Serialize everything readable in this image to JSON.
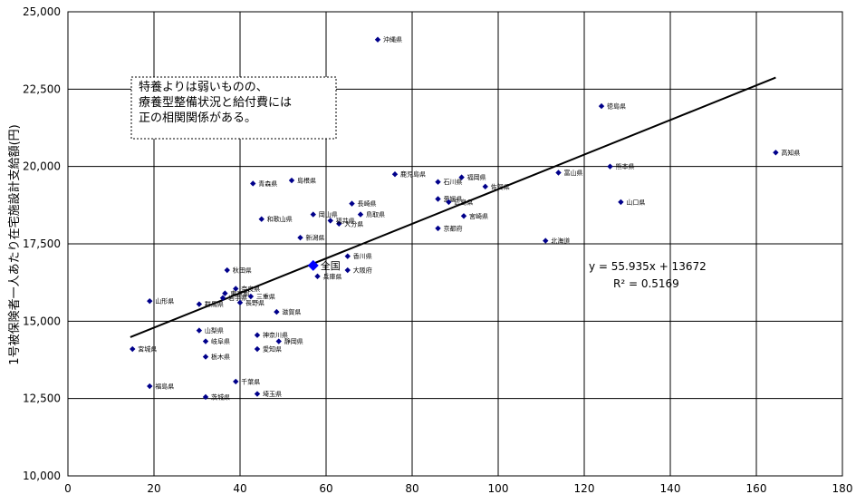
{
  "chart_data": {
    "type": "scatter",
    "ylabel": "1号被保険者一人あたり在宅施設計支給額(円)",
    "xlabel": "",
    "xlim": [
      0,
      180
    ],
    "ylim": [
      10000,
      25000
    ],
    "x_ticks": [
      "0",
      "20",
      "40",
      "60",
      "80",
      "100",
      "120",
      "140",
      "160",
      "180"
    ],
    "y_ticks": [
      "10,000",
      "12,500",
      "15,000",
      "17,500",
      "20,000",
      "22,500",
      "25,000"
    ],
    "grid": true,
    "marker_color": "#00008B",
    "national_color": "#0000FF",
    "trendline": {
      "slope": 55.935,
      "intercept": 13672,
      "x_range": [
        14.5,
        164.5
      ],
      "equation_text": "y = 55.935x + 13672",
      "r2_text": "R² = 0.5169"
    },
    "annotation_lines": [
      "特養よりは弱いものの、",
      "療養型整備状況と給付費には",
      "正の相関関係がある。"
    ],
    "national": {
      "name": "全国",
      "x": 57,
      "y": 16800
    },
    "points": [
      {
        "name": "沖縄県",
        "x": 72,
        "y": 24100
      },
      {
        "name": "徳島県",
        "x": 124,
        "y": 21950
      },
      {
        "name": "高知県",
        "x": 164.5,
        "y": 20450
      },
      {
        "name": "熊本県",
        "x": 126,
        "y": 20000
      },
      {
        "name": "富山県",
        "x": 114,
        "y": 19800
      },
      {
        "name": "鹿児島県",
        "x": 76,
        "y": 19750
      },
      {
        "name": "福岡県",
        "x": 91.5,
        "y": 19650
      },
      {
        "name": "島根県",
        "x": 52,
        "y": 19550
      },
      {
        "name": "石川県",
        "x": 86,
        "y": 19500
      },
      {
        "name": "青森県",
        "x": 43,
        "y": 19450
      },
      {
        "name": "佐賀県",
        "x": 97,
        "y": 19350
      },
      {
        "name": "愛媛県",
        "x": 86,
        "y": 18950
      },
      {
        "name": "広島県",
        "x": 88.5,
        "y": 18850
      },
      {
        "name": "山口県",
        "x": 128.5,
        "y": 18850
      },
      {
        "name": "長崎県",
        "x": 66,
        "y": 18800
      },
      {
        "name": "宮崎県",
        "x": 92,
        "y": 18400
      },
      {
        "name": "鳥取県",
        "x": 68,
        "y": 18450
      },
      {
        "name": "岡山県",
        "x": 57,
        "y": 18450
      },
      {
        "name": "和歌山県",
        "x": 45,
        "y": 18300
      },
      {
        "name": "大分県",
        "x": 63,
        "y": 18150
      },
      {
        "name": "福井県",
        "x": 61,
        "y": 18250
      },
      {
        "name": "京都府",
        "x": 86,
        "y": 18000
      },
      {
        "name": "新潟県",
        "x": 54,
        "y": 17700
      },
      {
        "name": "北海道",
        "x": 111,
        "y": 17600
      },
      {
        "name": "香川県",
        "x": 65,
        "y": 17100
      },
      {
        "name": "秋田県",
        "x": 37,
        "y": 16650
      },
      {
        "name": "大阪府",
        "x": 65,
        "y": 16650
      },
      {
        "name": "兵庫県",
        "x": 58,
        "y": 16450
      },
      {
        "name": "奈良県",
        "x": 39,
        "y": 16050
      },
      {
        "name": "東京都",
        "x": 36.5,
        "y": 15900
      },
      {
        "name": "三重県",
        "x": 42.5,
        "y": 15800
      },
      {
        "name": "岩手県",
        "x": 36,
        "y": 15750
      },
      {
        "name": "山形県",
        "x": 19,
        "y": 15650
      },
      {
        "name": "長野県",
        "x": 40,
        "y": 15600
      },
      {
        "name": "群馬県",
        "x": 30.5,
        "y": 15550
      },
      {
        "name": "滋賀県",
        "x": 48.5,
        "y": 15300
      },
      {
        "name": "山梨県",
        "x": 30.5,
        "y": 14700
      },
      {
        "name": "神奈川県",
        "x": 44,
        "y": 14550
      },
      {
        "name": "岐阜県",
        "x": 32,
        "y": 14350
      },
      {
        "name": "静岡県",
        "x": 49,
        "y": 14350
      },
      {
        "name": "宮城県",
        "x": 15,
        "y": 14100
      },
      {
        "name": "愛知県",
        "x": 44,
        "y": 14100
      },
      {
        "name": "栃木県",
        "x": 32,
        "y": 13850
      },
      {
        "name": "千葉県",
        "x": 39,
        "y": 13050
      },
      {
        "name": "福島県",
        "x": 19,
        "y": 12900
      },
      {
        "name": "埼玉県",
        "x": 44,
        "y": 12650
      },
      {
        "name": "茨城県",
        "x": 32,
        "y": 12550
      }
    ]
  }
}
